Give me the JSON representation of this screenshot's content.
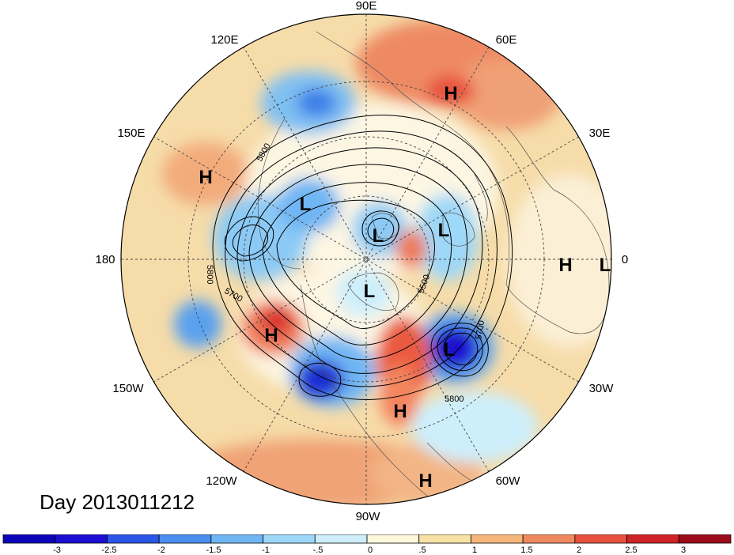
{
  "map": {
    "longitude_labels": [
      "90E",
      "60E",
      "30E",
      "0",
      "30W",
      "60W",
      "90W",
      "120W",
      "150W",
      "180",
      "150E",
      "120E"
    ],
    "contour_labels": [
      "5800",
      "5800",
      "5700",
      "5500",
      "5700",
      "5800"
    ],
    "pressure_systems": [
      "H",
      "H",
      "L",
      "L",
      "L",
      "L",
      "H",
      "L",
      "H",
      "L",
      "H",
      "H"
    ]
  },
  "title": "Day 2013011212",
  "colorbar": {
    "tick_labels": [
      "-3",
      "-2.5",
      "-2",
      "-1.5",
      "-1",
      "-.5",
      "0",
      ".5",
      "1",
      "1.5",
      "2",
      "2.5",
      "3"
    ],
    "colors": [
      "#1a0fd2",
      "#2a55e6",
      "#4a8ef0",
      "#6fb6f4",
      "#9ed8f8",
      "#cdeffc",
      "#fdf7dc",
      "#f7e1a5",
      "#f5b77c",
      "#ef8a5e",
      "#e8513d",
      "#cf2226",
      "#9b0b1a"
    ]
  }
}
